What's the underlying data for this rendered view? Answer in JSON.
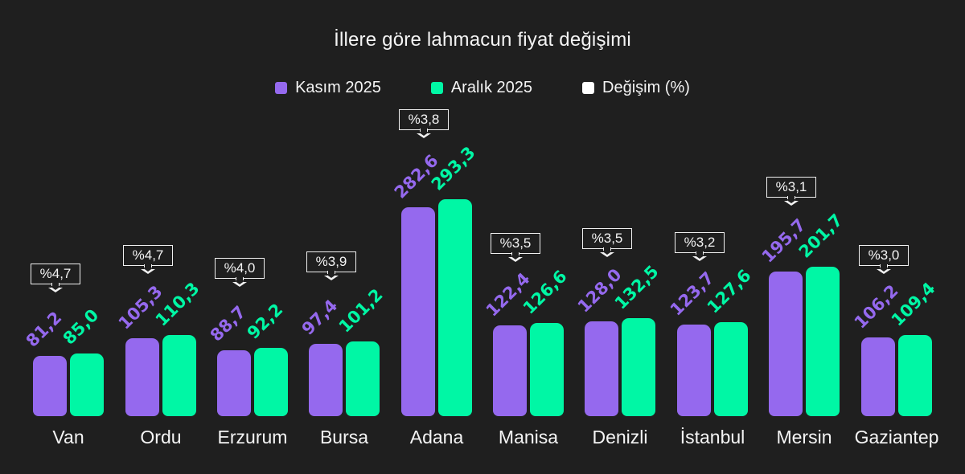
{
  "chart_data": {
    "type": "bar",
    "title": "İllere göre lahmacun fiyat değişimi",
    "xlabel": "",
    "ylabel": "",
    "grid": false,
    "legend_position": "top",
    "categories": [
      "Van",
      "Ordu",
      "Erzurum",
      "Bursa",
      "Adana",
      "Manisa",
      "Denizli",
      "İstanbul",
      "Mersin",
      "Gaziantep"
    ],
    "series": [
      {
        "name": "Kasım 2025",
        "color": "#9569ee",
        "values": [
          81.2,
          105.3,
          88.7,
          97.4,
          282.6,
          122.4,
          128.0,
          123.7,
          195.7,
          106.2
        ],
        "labels": [
          "81,2",
          "105,3",
          "88,7",
          "97,4",
          "282,6",
          "122,4",
          "128,0",
          "123,7",
          "195,7",
          "106,2"
        ]
      },
      {
        "name": "Aralık 2025",
        "color": "#00f7a5",
        "values": [
          85.0,
          110.3,
          92.2,
          101.2,
          293.3,
          126.6,
          132.5,
          127.6,
          201.7,
          109.4
        ],
        "labels": [
          "85,0",
          "110,3",
          "92,2",
          "101,2",
          "293,3",
          "126,6",
          "132,5",
          "127,6",
          "201,7",
          "109,4"
        ]
      },
      {
        "name": "Değişim (%)",
        "color": "#ffffff",
        "values": [
          4.7,
          4.7,
          4.0,
          3.9,
          3.8,
          3.5,
          3.5,
          3.2,
          3.1,
          3.0
        ],
        "labels": [
          "%4,7",
          "%4,7",
          "%4,0",
          "%3,9",
          "%3,8",
          "%3,5",
          "%3,5",
          "%3,2",
          "%3,1",
          "%3,0"
        ]
      }
    ]
  },
  "title": "İllere göre lahmacun fiyat değişimi",
  "legend": [
    {
      "label": "Kasım 2025",
      "color": "#9569ee"
    },
    {
      "label": "Aralık 2025",
      "color": "#00f7a5"
    },
    {
      "label": "Değişim (%)",
      "color": "#ffffff"
    }
  ]
}
